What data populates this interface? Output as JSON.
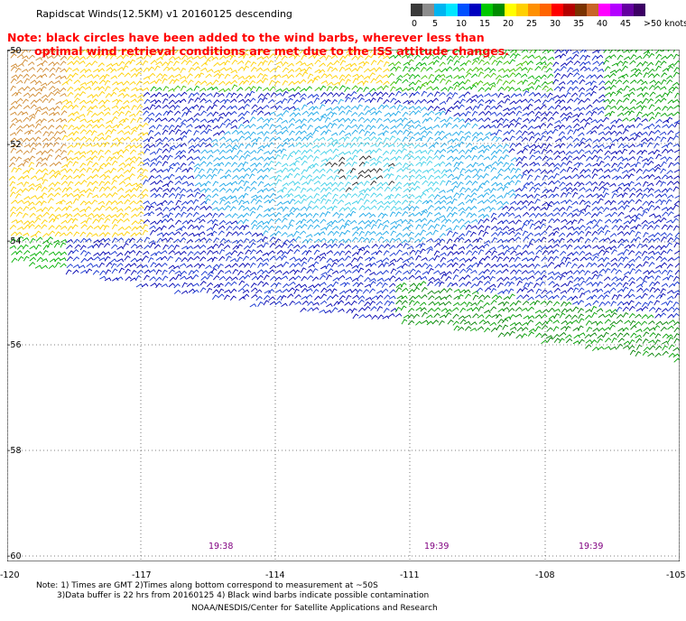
{
  "header": {
    "title": "Rapidscat Winds(12.5KM) v1 20160125 descending",
    "note_line1": "Note: black circles have been added to the wind barbs, wherever less than",
    "note_line2": "optimal wind retrieval conditions are met due to the ISS attitude changes."
  },
  "legend": {
    "colors": [
      "#3a3a3a",
      "#8c8c8c",
      "#00b4f0",
      "#00e6ff",
      "#0050ff",
      "#0000c0",
      "#00c800",
      "#008c00",
      "#ffff00",
      "#ffd000",
      "#ff9000",
      "#ff6400",
      "#ff0000",
      "#b40000",
      "#7a3200",
      "#c86428",
      "#ff00ff",
      "#b400ff",
      "#6400a0",
      "#3c0064"
    ],
    "labels": [
      "0",
      "5",
      "10",
      "15",
      "20",
      "25",
      "30",
      "35",
      "40",
      "45",
      ">50 knots"
    ]
  },
  "map": {
    "lat_labels": [
      "-50",
      "-52",
      "-54",
      "-56",
      "-58",
      "-60"
    ],
    "lon_labels": [
      "-120",
      "-117",
      "-114",
      "-111",
      "-108",
      "-105"
    ],
    "time_labels": [
      "19:38",
      "19:39",
      "19:39"
    ]
  },
  "footer": {
    "line1": "Note: 1) Times are GMT 2)Times along bottom correspond to measurement at ~50S",
    "line2": "3)Data buffer is 22 hrs from 20160125 4) Black wind barbs indicate possible contamination",
    "line3": "NOAA/NESDIS/Center for Satellite Applications and Research"
  }
}
